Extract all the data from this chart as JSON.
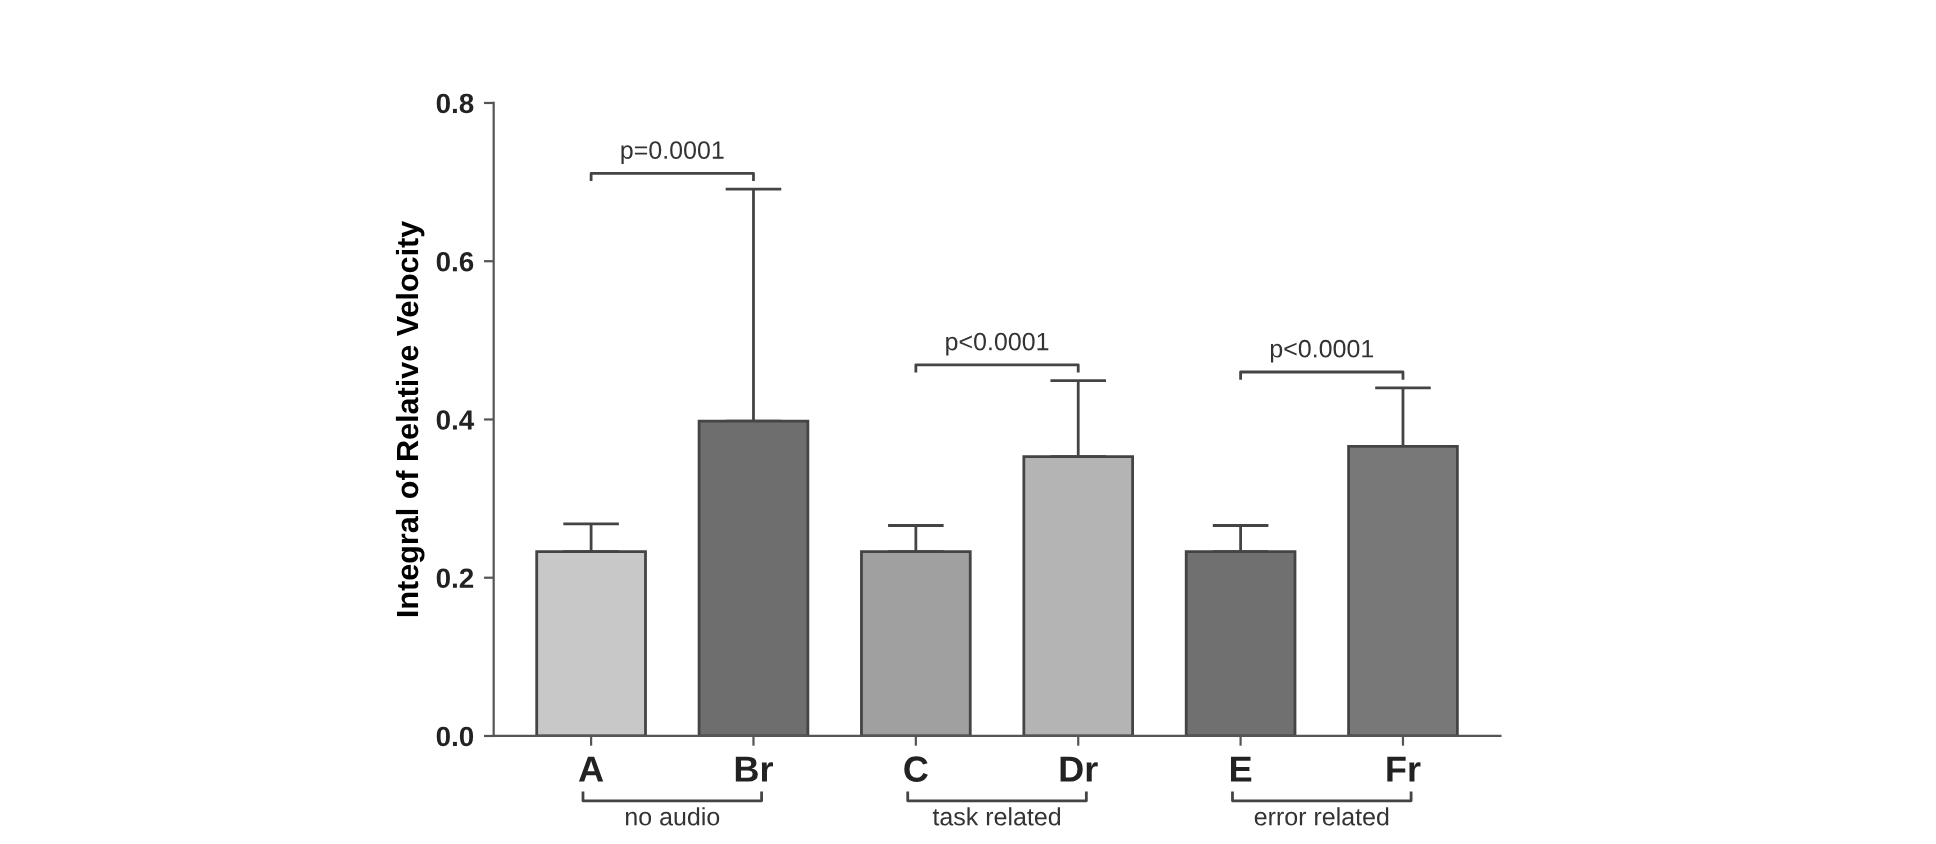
{
  "chart_data": {
    "type": "bar",
    "ylabel": "Integral of Relative Velocity",
    "categories": [
      "A",
      "Br",
      "C",
      "Dr",
      "E",
      "Fr"
    ],
    "values": [
      0.233,
      0.398,
      0.233,
      0.353,
      0.233,
      0.366
    ],
    "errors": [
      [
        0.233,
        0.268
      ],
      [
        0.398,
        0.691
      ],
      [
        0.233,
        0.266
      ],
      [
        0.353,
        0.449
      ],
      [
        0.233,
        0.266
      ],
      [
        0.366,
        0.44
      ]
    ],
    "colors": [
      "#c8c8c8",
      "#6e6e6e",
      "#a0a0a0",
      "#b4b4b4",
      "#707070",
      "#787878"
    ],
    "ylim": [
      0,
      0.8
    ],
    "yticks": [
      {
        "value": 0,
        "label": "0.0"
      },
      {
        "value": 0.2,
        "label": "0.2"
      },
      {
        "value": 0.4,
        "label": "0.4"
      },
      {
        "value": 0.6,
        "label": "0.6"
      },
      {
        "value": 0.8,
        "label": "0.8"
      }
    ],
    "grid": false,
    "legend": false,
    "annotations": [
      "p=0.0001",
      "p<0.0001",
      "p<0.0001",
      "no audio",
      "task related",
      "error related"
    ]
  }
}
